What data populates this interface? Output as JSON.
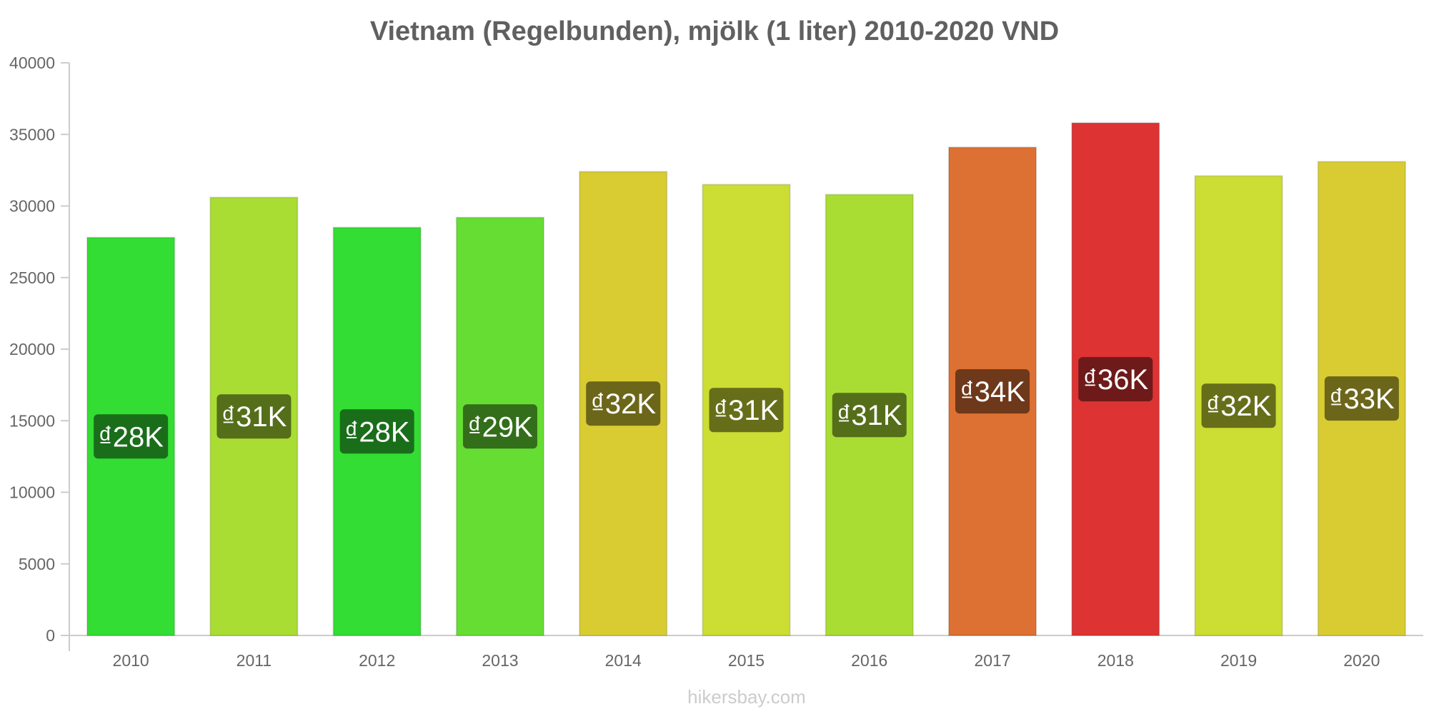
{
  "chart_data": {
    "type": "bar",
    "title": "Vietnam (Regelbunden), mjölk (1 liter) 2010-2020 VND",
    "xlabel": "",
    "ylabel": "",
    "ylim": [
      0,
      40000
    ],
    "yticks": [
      0,
      5000,
      10000,
      15000,
      20000,
      25000,
      30000,
      35000,
      40000
    ],
    "categories": [
      "2010",
      "2011",
      "2012",
      "2013",
      "2014",
      "2015",
      "2016",
      "2017",
      "2018",
      "2019",
      "2020"
    ],
    "values": [
      27800,
      30600,
      28500,
      29200,
      32400,
      31500,
      30800,
      34100,
      35800,
      32100,
      33100
    ],
    "data_labels": [
      "₫28K",
      "₫31K",
      "₫28K",
      "₫29K",
      "₫32K",
      "₫31K",
      "₫31K",
      "₫34K",
      "₫36K",
      "₫32K",
      "₫33K"
    ],
    "bar_colors": [
      "#33dd33",
      "#aadd33",
      "#33dd33",
      "#66dd33",
      "#d9cc33",
      "#ccdd33",
      "#aadd33",
      "#dd7033",
      "#dd3333",
      "#ccdd33",
      "#d9cc33"
    ],
    "label_bg_colors": [
      "#1a6e1a",
      "#556e1a",
      "#1a6e1a",
      "#336e1a",
      "#6c661a",
      "#666e1a",
      "#556e1a",
      "#6e381a",
      "#6e1a1a",
      "#666e1a",
      "#6c661a"
    ],
    "grid": false,
    "legend": "none"
  },
  "watermark": "hikersbay.com"
}
